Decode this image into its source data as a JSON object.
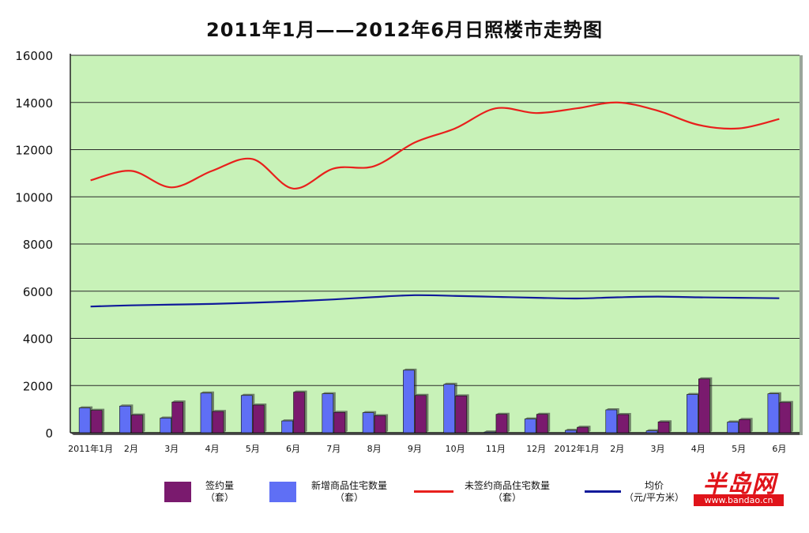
{
  "chart_data": {
    "type": "bar",
    "title": "2011年1月——2012年6月日照楼市走势图",
    "categories": [
      "2011年1月",
      "2月",
      "3月",
      "4月",
      "5月",
      "6月",
      "7月",
      "8月",
      "9月",
      "10月",
      "11月",
      "12月",
      "2012年1月",
      "2月",
      "3月",
      "4月",
      "5月",
      "6月"
    ],
    "ylim": [
      0,
      16000
    ],
    "yticks": [
      0,
      2000,
      4000,
      6000,
      8000,
      10000,
      12000,
      14000,
      16000
    ],
    "grid": true,
    "legend_position": "bottom",
    "series": [
      {
        "name": "新增商品住宅数量",
        "unit": "（套）",
        "type": "bar",
        "color": "#5f6ff5",
        "values": [
          1050,
          1130,
          620,
          1680,
          1580,
          500,
          1650,
          850,
          2650,
          2050,
          30,
          580,
          100,
          970,
          80,
          1620,
          450,
          1650
        ]
      },
      {
        "name": "签约量",
        "unit": "（套）",
        "type": "bar",
        "color": "#7a1a6e",
        "values": [
          950,
          750,
          1300,
          900,
          1170,
          1720,
          860,
          720,
          1580,
          1560,
          780,
          780,
          230,
          770,
          460,
          2280,
          560,
          1280
        ]
      },
      {
        "name": "未签约商品住宅数量",
        "unit": "（套）",
        "type": "line",
        "color": "#e8201c",
        "values": [
          10700,
          11100,
          10400,
          11100,
          11600,
          10350,
          11200,
          11300,
          12300,
          12900,
          13750,
          13550,
          13750,
          14000,
          13650,
          13050,
          12900,
          13300
        ]
      },
      {
        "name": "均价",
        "unit": "（元/平方米）",
        "type": "line",
        "color": "#101a9a",
        "values": [
          5350,
          5400,
          5430,
          5460,
          5510,
          5570,
          5650,
          5750,
          5830,
          5800,
          5760,
          5720,
          5690,
          5740,
          5770,
          5740,
          5720,
          5700
        ]
      }
    ]
  },
  "legend": [
    {
      "name": "签约量",
      "unit": "（套）",
      "color": "#7a1a6e",
      "kind": "bar"
    },
    {
      "name": "新增商品住宅数量",
      "unit": "（套）",
      "color": "#5f6ff5",
      "kind": "bar"
    },
    {
      "name": "未签约商品住宅数量",
      "unit": "（套）",
      "color": "#e8201c",
      "kind": "line"
    },
    {
      "name": "均价",
      "unit": "（元/平方米）",
      "color": "#101a9a",
      "kind": "line"
    }
  ],
  "logo": {
    "text": "半岛网",
    "url": "www.bandao.cn"
  },
  "colors": {
    "plot_bg": "#c8f2b8",
    "grid": "#2a2a2a",
    "floor": "#555555"
  }
}
